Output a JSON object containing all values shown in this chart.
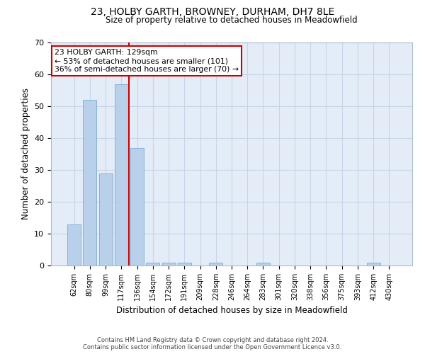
{
  "title": "23, HOLBY GARTH, BROWNEY, DURHAM, DH7 8LE",
  "subtitle": "Size of property relative to detached houses in Meadowfield",
  "xlabel": "Distribution of detached houses by size in Meadowfield",
  "ylabel": "Number of detached properties",
  "categories": [
    "62sqm",
    "80sqm",
    "99sqm",
    "117sqm",
    "136sqm",
    "154sqm",
    "172sqm",
    "191sqm",
    "209sqm",
    "228sqm",
    "246sqm",
    "264sqm",
    "283sqm",
    "301sqm",
    "320sqm",
    "338sqm",
    "356sqm",
    "375sqm",
    "393sqm",
    "412sqm",
    "430sqm"
  ],
  "values": [
    13,
    52,
    29,
    57,
    37,
    1,
    1,
    1,
    0,
    1,
    0,
    0,
    1,
    0,
    0,
    0,
    0,
    0,
    0,
    1,
    0
  ],
  "bar_color": "#b8d0ea",
  "bar_edge_color": "#7aadd4",
  "vline_color": "#cc0000",
  "annotation_text": "23 HOLBY GARTH: 129sqm\n← 53% of detached houses are smaller (101)\n36% of semi-detached houses are larger (70) →",
  "annotation_box_color": "#ffffff",
  "annotation_box_edge_color": "#cc0000",
  "ylim": [
    0,
    70
  ],
  "yticks": [
    0,
    10,
    20,
    30,
    40,
    50,
    60,
    70
  ],
  "grid_color": "#c8d4e8",
  "bg_color": "#e4ecf7",
  "footer_line1": "Contains HM Land Registry data © Crown copyright and database right 2024.",
  "footer_line2": "Contains public sector information licensed under the Open Government Licence v3.0."
}
